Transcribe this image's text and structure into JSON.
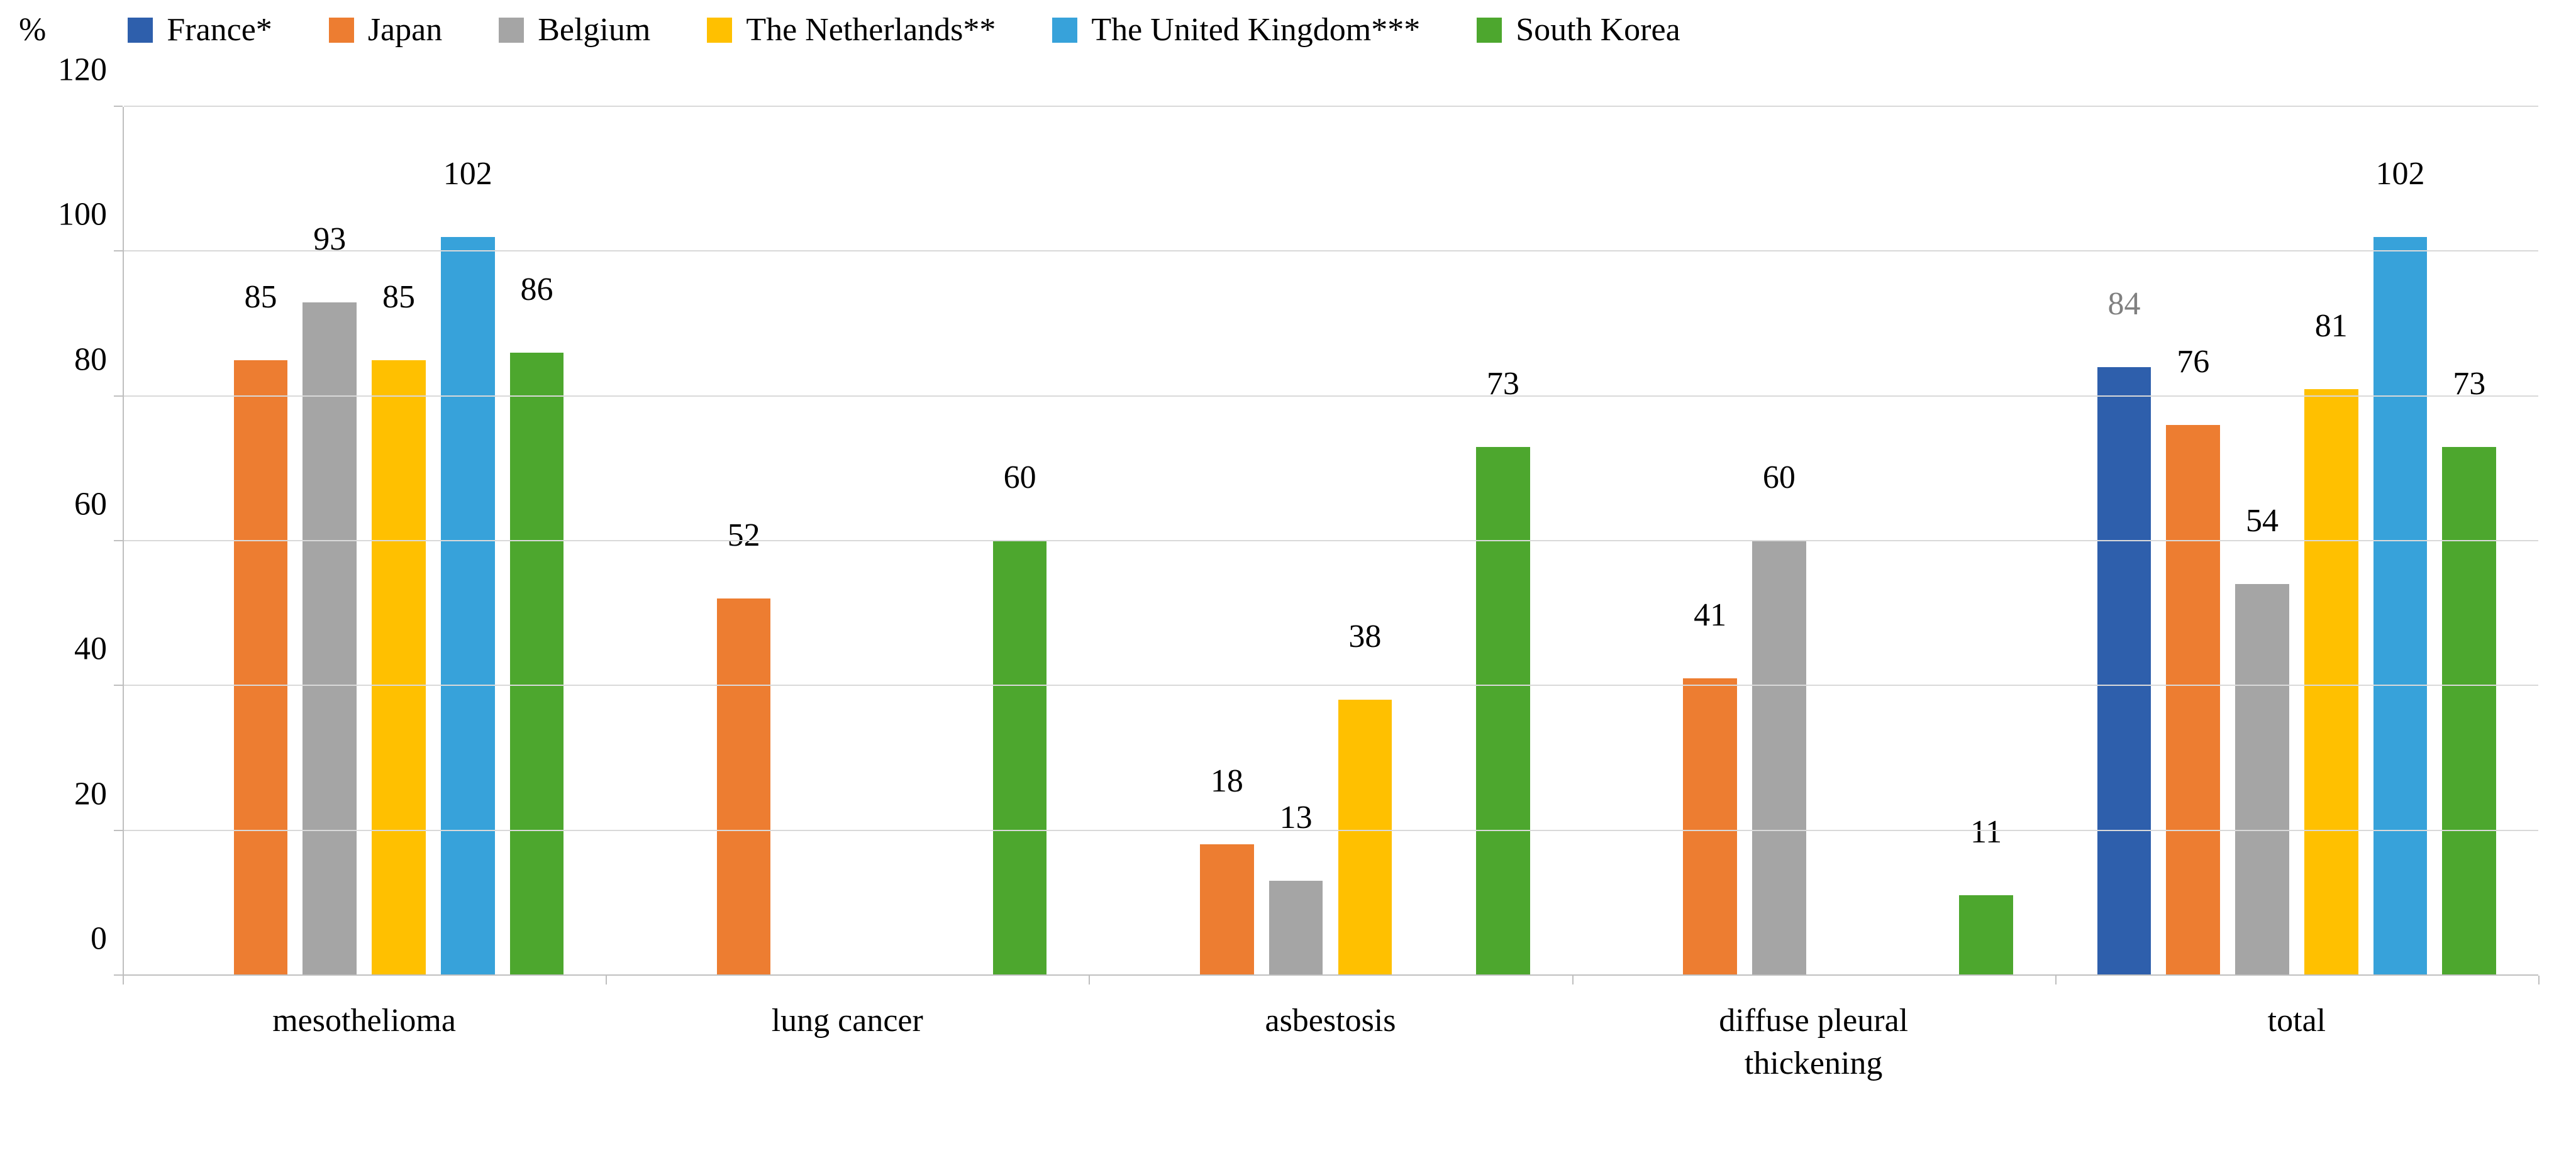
{
  "chart": {
    "type": "bar",
    "y_axis_label": "%",
    "font_family": "Palatino Linotype",
    "label_fontsize_pt": 39,
    "value_label_fontsize_pt": 39,
    "background_color": "#ffffff",
    "grid_color": "#d9d9d9",
    "axis_color": "#bfbfbf",
    "ylim": [
      0,
      120
    ],
    "ytick_step": 20,
    "yticks": [
      0,
      20,
      40,
      60,
      80,
      100,
      120
    ],
    "bar_width_fraction_of_slot": 0.78,
    "series": [
      {
        "key": "france",
        "label": "France*",
        "color": "#2e5fac"
      },
      {
        "key": "japan",
        "label": "Japan",
        "color": "#ed7d31"
      },
      {
        "key": "belgium",
        "label": "Belgium",
        "color": "#a5a5a5"
      },
      {
        "key": "nl",
        "label": "The Netherlands**",
        "color": "#ffc000"
      },
      {
        "key": "uk",
        "label": "The United Kingdom***",
        "color": "#37a2da"
      },
      {
        "key": "sk",
        "label": "South Korea",
        "color": "#4da72e"
      }
    ],
    "categories": [
      {
        "key": "mesothelioma",
        "label": "mesothelioma"
      },
      {
        "key": "lung_cancer",
        "label": "lung cancer"
      },
      {
        "key": "asbestosis",
        "label": "asbestosis"
      },
      {
        "key": "dpt",
        "label": "diffuse pleural\nthickening"
      },
      {
        "key": "total",
        "label": "total"
      }
    ],
    "values": {
      "mesothelioma": {
        "france": null,
        "japan": 85,
        "belgium": 93,
        "nl": 85,
        "uk": 102,
        "sk": 86
      },
      "lung_cancer": {
        "france": null,
        "japan": 52,
        "belgium": null,
        "nl": null,
        "uk": null,
        "sk": 60
      },
      "asbestosis": {
        "france": null,
        "japan": 18,
        "belgium": 13,
        "nl": 38,
        "uk": null,
        "sk": 73
      },
      "dpt": {
        "france": null,
        "japan": 41,
        "belgium": 60,
        "nl": null,
        "uk": null,
        "sk": 11
      },
      "total": {
        "france": 84,
        "japan": 76,
        "belgium": 54,
        "nl": 81,
        "uk": 102,
        "sk": 73
      }
    },
    "value_label_color_overrides": {
      "total.france": "#808080"
    }
  }
}
